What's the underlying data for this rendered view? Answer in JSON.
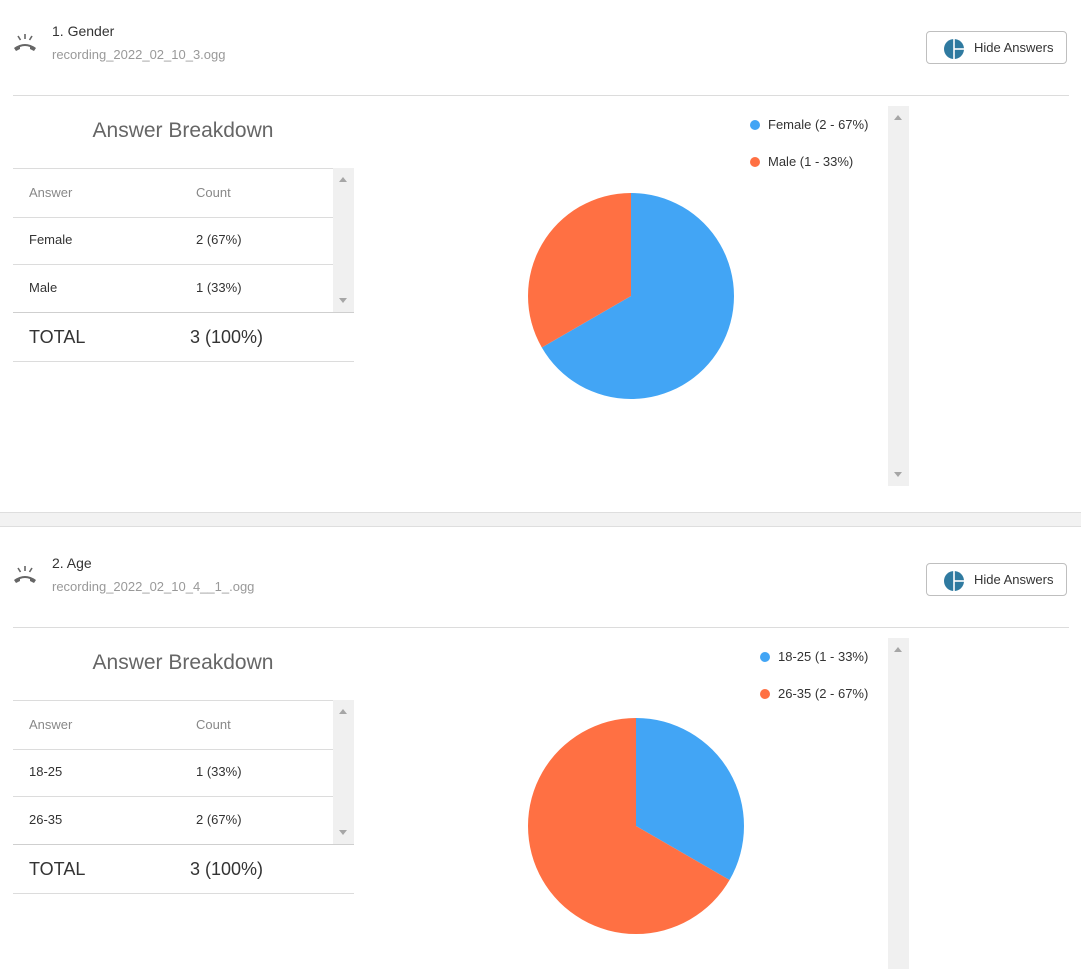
{
  "colors": {
    "blue": "#42a5f5",
    "orange": "#ff7043",
    "icon": "#2f7aa0"
  },
  "questions": [
    {
      "title": "1. Gender",
      "file": "recording_2022_02_10_3.ogg",
      "icon": "phone-hangup-icon",
      "hide_button": "Hide Answers",
      "breakdown_title": "Answer Breakdown",
      "table": {
        "headers": [
          "Answer",
          "Count"
        ],
        "rows": [
          {
            "answer": "Female",
            "count": "2 (67%)"
          },
          {
            "answer": "Male",
            "count": "1 (33%)"
          }
        ],
        "total_label": "TOTAL",
        "total_value": "3 (100%)"
      },
      "legend": [
        {
          "label": "Female (2 - 67%)",
          "color": "#42a5f5"
        },
        {
          "label": "Male (1 - 33%)",
          "color": "#ff7043"
        }
      ]
    },
    {
      "title": "2. Age",
      "file": "recording_2022_02_10_4__1_.ogg",
      "icon": "phone-hangup-icon",
      "hide_button": "Hide Answers",
      "breakdown_title": "Answer Breakdown",
      "table": {
        "headers": [
          "Answer",
          "Count"
        ],
        "rows": [
          {
            "answer": "18-25",
            "count": "1 (33%)"
          },
          {
            "answer": "26-35",
            "count": "2 (67%)"
          }
        ],
        "total_label": "TOTAL",
        "total_value": "3 (100%)"
      },
      "legend": [
        {
          "label": "18-25 (1 - 33%)",
          "color": "#42a5f5"
        },
        {
          "label": "26-35 (2 - 67%)",
          "color": "#ff7043"
        }
      ]
    }
  ],
  "chart_data": [
    {
      "type": "pie",
      "categories": [
        "Female",
        "Male"
      ],
      "values": [
        2,
        1
      ],
      "colors": [
        "#42a5f5",
        "#ff7043"
      ],
      "legend": "top-right"
    },
    {
      "type": "pie",
      "categories": [
        "18-25",
        "26-35"
      ],
      "values": [
        1,
        2
      ],
      "colors": [
        "#42a5f5",
        "#ff7043"
      ],
      "legend": "top-right"
    }
  ]
}
